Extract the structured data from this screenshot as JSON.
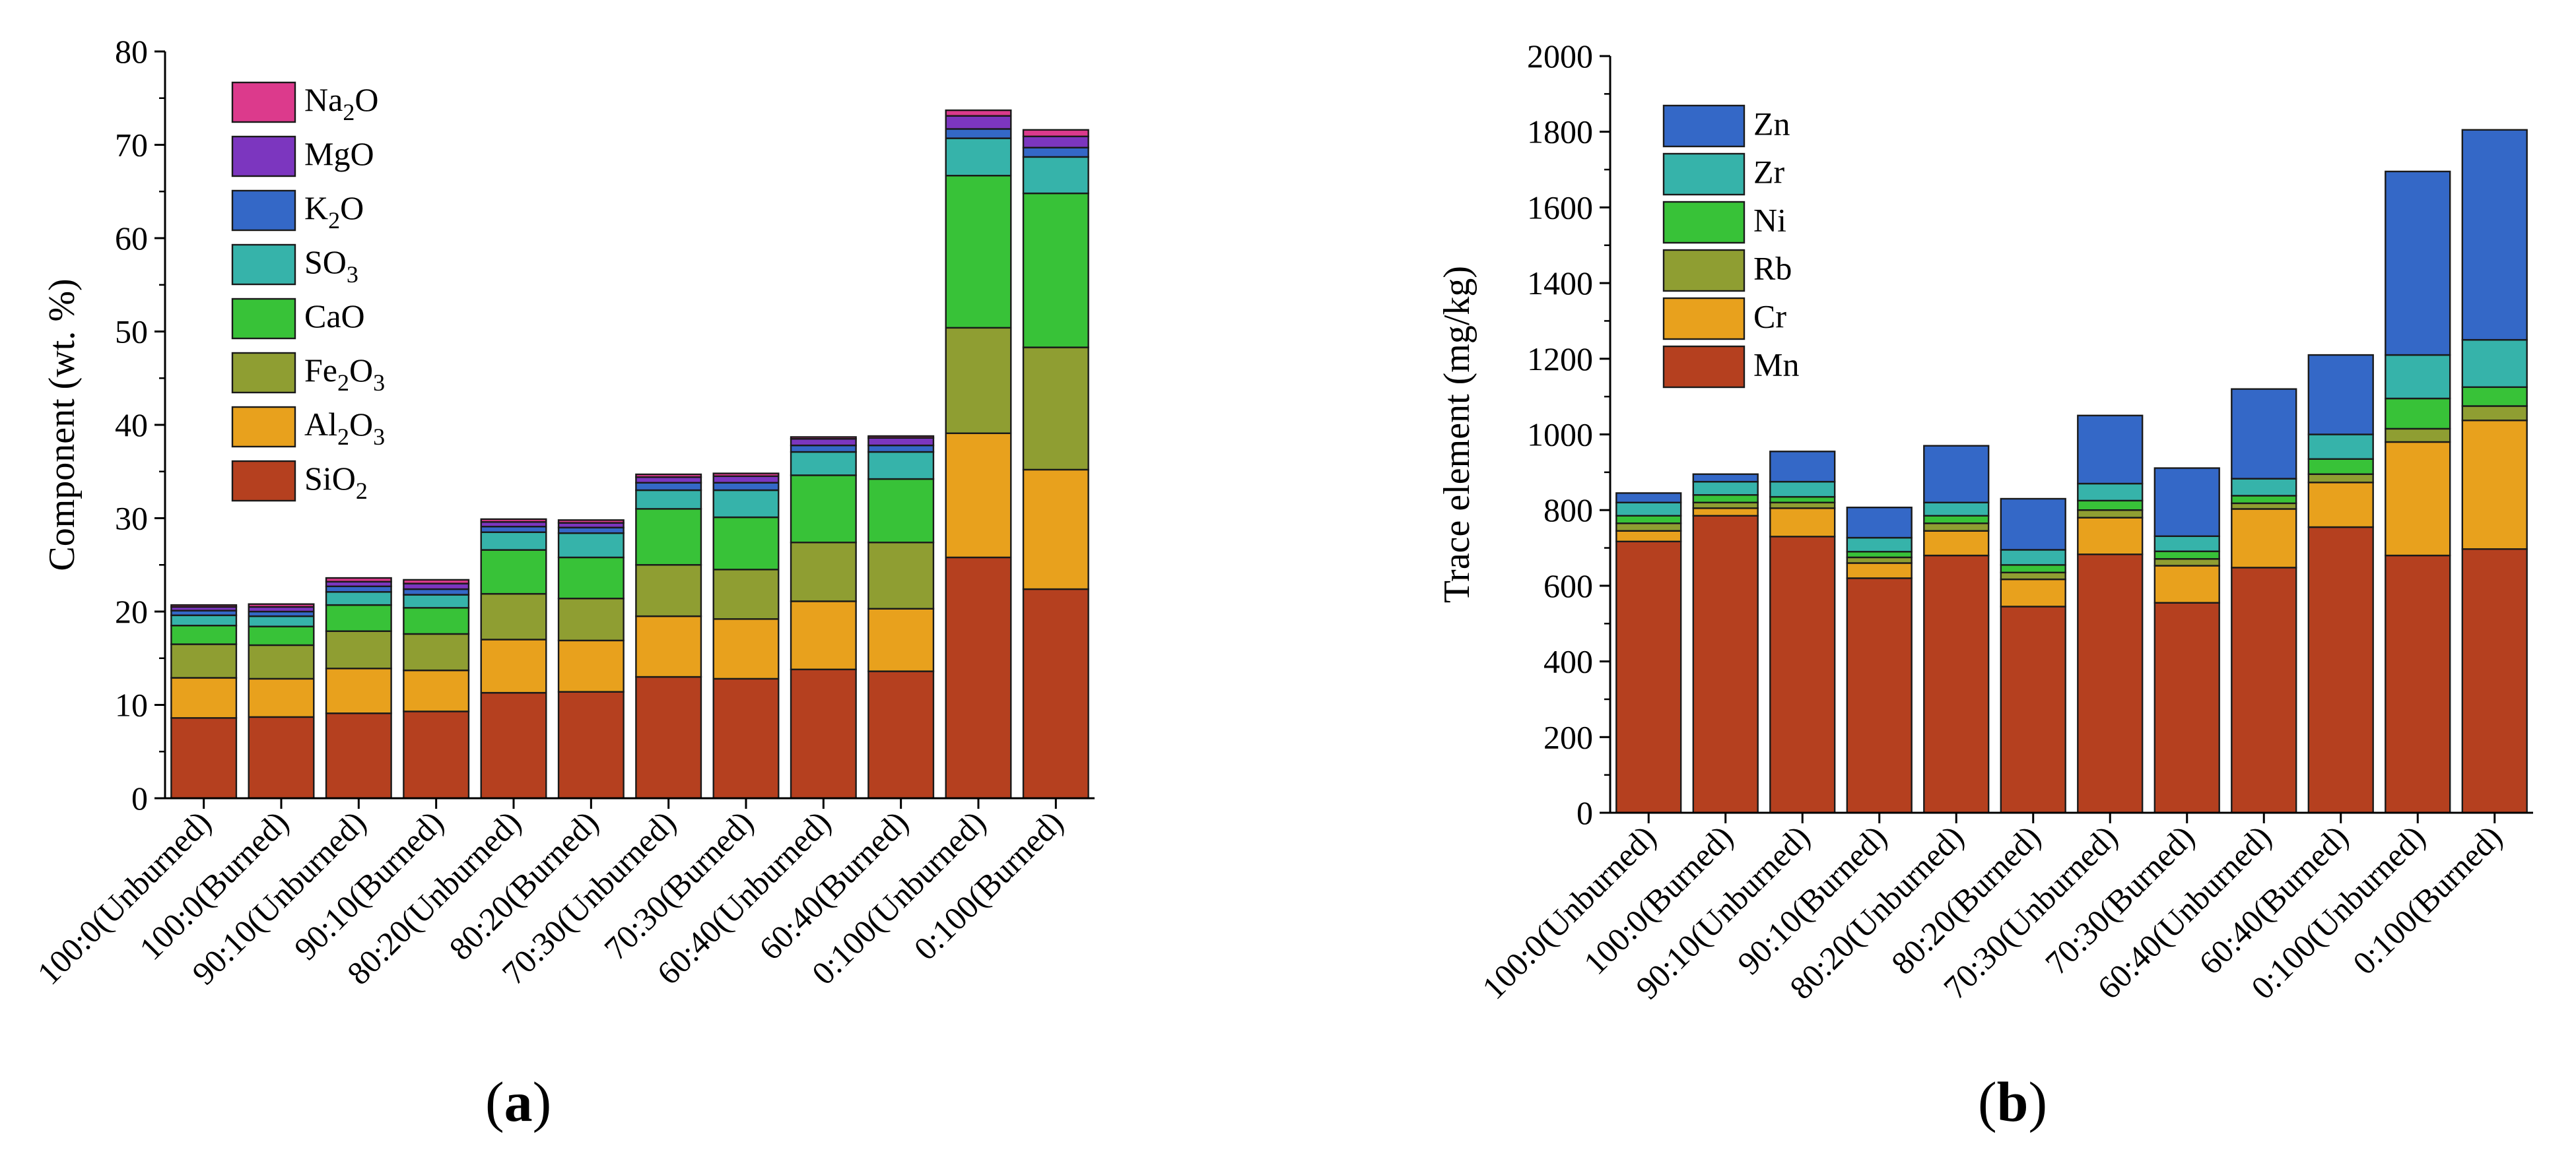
{
  "charts": [
    {
      "type": "bar",
      "stacked": true,
      "panel_label": "a",
      "ylabel": "Component (wt. %)",
      "xlabel": "",
      "ylim": [
        0,
        80
      ],
      "ytick_values": [
        0,
        10,
        20,
        30,
        40,
        50,
        60,
        70,
        80
      ],
      "yticks": [
        "0",
        "10",
        "20",
        "30",
        "40",
        "50",
        "60",
        "70",
        "80"
      ],
      "categories": [
        "100:0(Unburned)",
        "100:0(Burned)",
        "90:10(Unburned)",
        "90:10(Burned)",
        "80:20(Unburned)",
        "80:20(Burned)",
        "70:30(Unburned)",
        "70:30(Burned)",
        "60:40(Unburned)",
        "60:40(Burned)",
        "0:100(Unburned)",
        "0:100(Burned)"
      ],
      "legend_position": "top-left",
      "series": [
        {
          "name": "SiO2",
          "base": "SiO",
          "sub": "2",
          "color": "#b5401f",
          "values": [
            8.6,
            8.7,
            9.1,
            9.3,
            11.3,
            11.4,
            13.0,
            12.8,
            13.8,
            13.6,
            25.8,
            22.4
          ]
        },
        {
          "name": "Al2O3",
          "base": "Al",
          "sub": "2",
          "tail": "O",
          "sub2": "3",
          "color": "#e8a11d",
          "values": [
            4.3,
            4.1,
            4.8,
            4.4,
            5.7,
            5.5,
            6.5,
            6.4,
            7.3,
            6.7,
            13.3,
            12.8
          ]
        },
        {
          "name": "Fe2O3",
          "base": "Fe",
          "sub": "2",
          "tail": "O",
          "sub2": "3",
          "color": "#8f9e32",
          "values": [
            3.6,
            3.6,
            4.0,
            3.9,
            4.9,
            4.5,
            5.5,
            5.3,
            6.3,
            7.1,
            11.3,
            13.1
          ]
        },
        {
          "name": "CaO",
          "base": "CaO",
          "color": "#38c238",
          "values": [
            2.0,
            2.0,
            2.8,
            2.8,
            4.7,
            4.4,
            6.0,
            5.6,
            7.2,
            6.8,
            16.3,
            16.5
          ]
        },
        {
          "name": "SO3",
          "base": "SO",
          "sub": "3",
          "color": "#36b3aa",
          "values": [
            1.1,
            1.1,
            1.4,
            1.4,
            1.9,
            2.6,
            2.0,
            2.9,
            2.5,
            2.9,
            4.0,
            3.9
          ]
        },
        {
          "name": "K2O",
          "base": "K",
          "sub": "2",
          "tail": "O",
          "color": "#3468c7",
          "values": [
            0.5,
            0.5,
            0.6,
            0.6,
            0.6,
            0.6,
            0.8,
            0.8,
            0.7,
            0.7,
            1.0,
            1.0
          ]
        },
        {
          "name": "MgO",
          "base": "MgO",
          "color": "#7c36bf",
          "values": [
            0.4,
            0.5,
            0.5,
            0.6,
            0.5,
            0.5,
            0.6,
            0.7,
            0.7,
            0.8,
            1.4,
            1.2
          ]
        },
        {
          "name": "Na2O",
          "base": "Na",
          "sub": "2",
          "tail": "O",
          "color": "#dc3a8c",
          "values": [
            0.2,
            0.3,
            0.4,
            0.4,
            0.3,
            0.3,
            0.3,
            0.3,
            0.2,
            0.2,
            0.6,
            0.7
          ]
        }
      ]
    },
    {
      "type": "bar",
      "stacked": true,
      "panel_label": "b",
      "ylabel": "Trace element (mg/kg)",
      "xlabel": "",
      "ylim": [
        0,
        2000
      ],
      "ytick_values": [
        0,
        200,
        400,
        600,
        800,
        1000,
        1200,
        1400,
        1600,
        1800,
        2000
      ],
      "yticks": [
        "0",
        "200",
        "400",
        "600",
        "800",
        "1000",
        "1200",
        "1400",
        "1600",
        "1800",
        "2000"
      ],
      "categories": [
        "100:0(Unburned)",
        "100:0(Burned)",
        "90:10(Unburned)",
        "90:10(Burned)",
        "80:20(Unburned)",
        "80:20(Burned)",
        "70:30(Unburned)",
        "70:30(Burned)",
        "60:40(Unburned)",
        "60:40(Burned)",
        "0:100(Unburned)",
        "0:100(Burned)"
      ],
      "legend_position": "top-left",
      "series": [
        {
          "name": "Mn",
          "base": "Mn",
          "color": "#b5401f",
          "values": [
            717,
            785,
            730,
            620,
            680,
            545,
            683,
            555,
            648,
            755,
            680,
            697
          ]
        },
        {
          "name": "Cr",
          "base": "Cr",
          "color": "#e8a11d",
          "values": [
            28,
            20,
            75,
            40,
            65,
            72,
            97,
            98,
            155,
            118,
            300,
            340
          ]
        },
        {
          "name": "Rb",
          "base": "Rb",
          "color": "#8f9e32",
          "values": [
            20,
            15,
            15,
            15,
            20,
            18,
            20,
            18,
            15,
            22,
            35,
            38
          ]
        },
        {
          "name": "Ni",
          "base": "Ni",
          "color": "#38c238",
          "values": [
            20,
            20,
            15,
            15,
            20,
            20,
            25,
            20,
            20,
            40,
            80,
            50
          ]
        },
        {
          "name": "Zr",
          "base": "Zr",
          "color": "#36b3aa",
          "values": [
            35,
            35,
            40,
            37,
            35,
            40,
            45,
            40,
            45,
            65,
            115,
            125
          ]
        },
        {
          "name": "Zn",
          "base": "Zn",
          "color": "#3468c7",
          "values": [
            25,
            20,
            80,
            80,
            150,
            135,
            180,
            180,
            237,
            210,
            485,
            555
          ]
        }
      ]
    }
  ]
}
